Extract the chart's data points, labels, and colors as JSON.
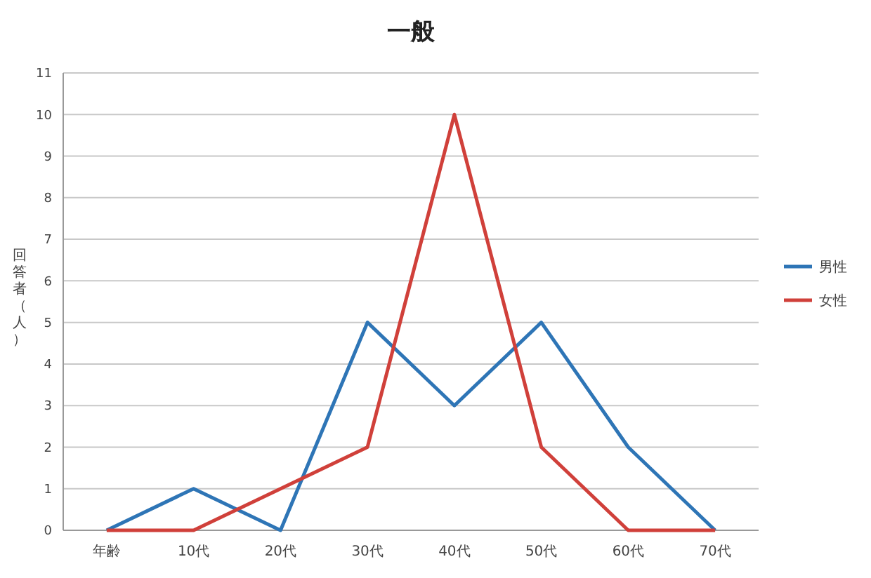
{
  "chart_data": {
    "type": "line",
    "title": "一般",
    "ylabel": "回答者（人）",
    "categories": [
      "年齢",
      "10代",
      "20代",
      "30代",
      "40代",
      "50代",
      "60代",
      "70代"
    ],
    "series": [
      {
        "name": "男性",
        "color": "#2e75b6",
        "values": [
          0,
          1,
          0,
          5,
          3,
          5,
          2,
          0
        ]
      },
      {
        "name": "女性",
        "color": "#d0403a",
        "values": [
          0,
          0,
          1,
          2,
          10,
          2,
          0,
          0
        ]
      }
    ],
    "ylim": [
      0,
      11
    ],
    "yticks": [
      0,
      1,
      2,
      3,
      4,
      5,
      6,
      7,
      8,
      9,
      10,
      11
    ],
    "grid": "y",
    "legend": "right",
    "marker": "none",
    "line_style": "solid"
  }
}
